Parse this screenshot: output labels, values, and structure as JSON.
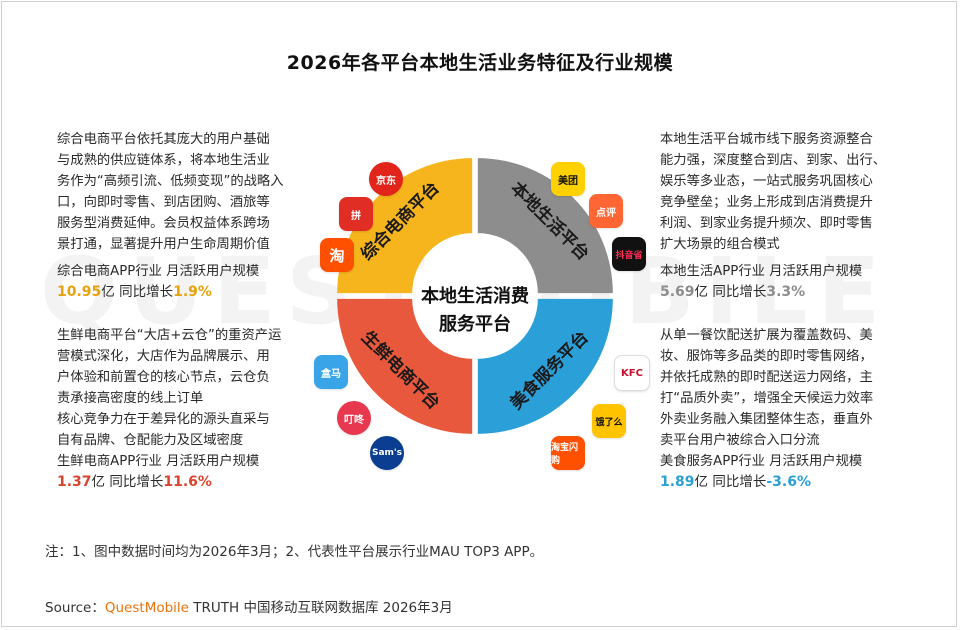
{
  "title": "2026年各平台本地生活业务特征及行业规模",
  "watermark": "QUESTMOBILE",
  "center": {
    "line1": "本地生活消费",
    "line2": "服务平台"
  },
  "segments": [
    {
      "label": "综合电商平台",
      "color": "#F6B51C"
    },
    {
      "label": "本地生活平台",
      "color": "#8D8D8D"
    },
    {
      "label": "美食服务平台",
      "color": "#2A9FD8"
    },
    {
      "label": "生鲜电商平台",
      "color": "#E8583C"
    }
  ],
  "blocks": {
    "top_left": {
      "lines": [
        "综合电商平台依托其庞大的用户基础",
        "与成熟的供应链体系，将本地生活业",
        "务作为“高频引流、低频变现”的战略入",
        "口，向即时零售、到店团购、酒旅等",
        "服务型消费延伸。会员权益体系跨场",
        "景打通，显著提升用户生命周期价值"
      ],
      "metric_label": "综合电商APP行业 月活跃用户规模",
      "value": "10.95",
      "unit": "亿 同比增长",
      "growth": "1.9%"
    },
    "top_right": {
      "lines": [
        "本地生活平台城市线下服务资源整合",
        "能力强，深度整合到店、到家、出行、",
        "娱乐等多业态，一站式服务巩固核心",
        "竞争壁垒；业务上形成到店消费提升",
        "利润、到家业务提升频次、即时零售",
        "扩大场景的组合模式"
      ],
      "metric_label": "本地生活APP行业 月活跃用户规模",
      "value": "5.69",
      "unit": "亿 同比增长",
      "growth": "3.3%"
    },
    "bottom_left": {
      "lines": [
        "生鲜电商平台“大店+云仓”的重资产运",
        "营模式深化，大店作为品牌展示、用",
        "户体验和前置仓的核心节点，云仓负",
        "责承接高密度的线上订单",
        "核心竞争力在于差异化的源头直采与",
        "自有品牌、仓配能力及区域密度"
      ],
      "metric_label": "生鲜电商APP行业 月活跃用户规模",
      "value": "1.37",
      "unit": "亿 同比增长",
      "growth": "11.6%"
    },
    "bottom_right": {
      "lines": [
        "从单一餐饮配送扩展为覆盖数码、美",
        "妆、服饰等多品类的即时零售网络，",
        "并依托成熟的即时配送运力网络，主",
        "打“品质外卖”，增强全天候运力效率",
        "外卖业务融入集团整体生态，垂直外",
        "卖平台用户被综合入口分流"
      ],
      "metric_label": "美食服务APP行业 月活跃用户规模",
      "value": "1.89",
      "unit": "亿 同比增长",
      "growth": "-3.6%"
    }
  },
  "icons": {
    "jd": "京东",
    "pdd": "拼",
    "taobao": "淘",
    "meituan": "美团",
    "dianping": "点评",
    "douyin": "抖音省",
    "hema": "盒马",
    "dingdong": "叮咚",
    "sams": "Sam's",
    "kfc": "KFC",
    "ele": "饿了么",
    "taobao_shangou": "淘宝闪购"
  },
  "note": "注：1、图中数据时间均为2026年3月；2、代表性平台展示行业MAU TOP3 APP。",
  "source": {
    "prefix": "Source：",
    "brand": "QuestMobile",
    "suffix": " TRUTH 中国移动互联网数据库 2026年3月"
  }
}
